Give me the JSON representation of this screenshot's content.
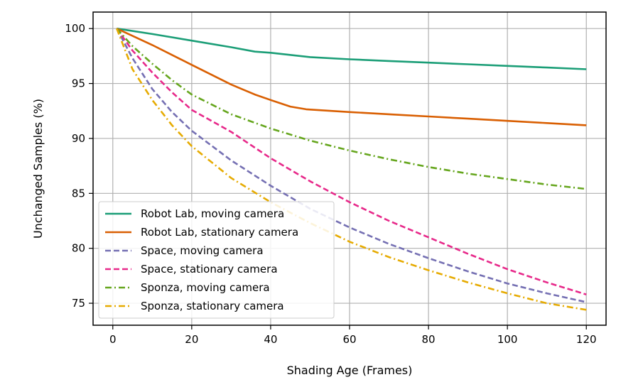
{
  "chart_data": {
    "type": "line",
    "xlabel": "Shading Age (Frames)",
    "ylabel": "Unchanged Samples (%)",
    "xlim": [
      -5,
      125
    ],
    "ylim": [
      73,
      101.5
    ],
    "xticks": [
      0,
      20,
      40,
      60,
      80,
      100,
      120
    ],
    "yticks": [
      75,
      80,
      85,
      90,
      95,
      100
    ],
    "grid": true,
    "legend_position": "lower-left",
    "series": [
      {
        "name": "Robot Lab, moving camera",
        "color": "#1b9e77",
        "dash": "solid",
        "x": [
          1,
          10,
          20,
          30,
          36,
          40,
          50,
          60,
          70,
          80,
          90,
          100,
          110,
          120
        ],
        "y": [
          100,
          99.5,
          98.9,
          98.3,
          97.9,
          97.8,
          97.4,
          97.2,
          97.05,
          96.9,
          96.75,
          96.6,
          96.45,
          96.3
        ]
      },
      {
        "name": "Robot Lab, stationary camera",
        "color": "#d95f02",
        "dash": "solid",
        "x": [
          1,
          10,
          20,
          30,
          36,
          40,
          45,
          49,
          60,
          70,
          80,
          90,
          100,
          110,
          120
        ],
        "y": [
          100,
          98.5,
          96.7,
          94.9,
          94.0,
          93.5,
          92.9,
          92.65,
          92.4,
          92.2,
          92.0,
          91.8,
          91.6,
          91.4,
          91.2
        ]
      },
      {
        "name": "Space, moving camera",
        "color": "#7570b3",
        "dash": "dashed",
        "x": [
          1,
          5,
          10,
          15,
          20,
          30,
          40,
          50,
          60,
          70,
          80,
          90,
          100,
          110,
          120
        ],
        "y": [
          100,
          97.3,
          94.5,
          92.4,
          90.7,
          88.0,
          85.7,
          83.6,
          81.9,
          80.4,
          79.1,
          77.9,
          76.8,
          75.9,
          75.1
        ]
      },
      {
        "name": "Space, stationary camera",
        "color": "#e7298a",
        "dash": "dashed",
        "x": [
          1,
          5,
          10,
          15,
          20,
          30,
          40,
          50,
          60,
          70,
          80,
          90,
          100,
          110,
          120
        ],
        "y": [
          100,
          98.0,
          96.0,
          94.2,
          92.6,
          90.6,
          88.2,
          86.1,
          84.2,
          82.5,
          81.0,
          79.5,
          78.1,
          76.9,
          75.8
        ]
      },
      {
        "name": "Sponza, moving camera",
        "color": "#66a61e",
        "dash": "dashdot",
        "x": [
          1,
          5,
          10,
          15,
          20,
          30,
          40,
          50,
          60,
          70,
          80,
          90,
          100,
          110,
          120
        ],
        "y": [
          100,
          98.4,
          96.8,
          95.3,
          94.0,
          92.2,
          90.9,
          89.8,
          88.9,
          88.1,
          87.4,
          86.8,
          86.3,
          85.8,
          85.4
        ]
      },
      {
        "name": "Sponza, stationary camera",
        "color": "#e6ab02",
        "dash": "dashdot",
        "x": [
          1,
          5,
          10,
          15,
          20,
          30,
          40,
          50,
          60,
          70,
          80,
          90,
          100,
          110,
          120
        ],
        "y": [
          100,
          96.3,
          93.5,
          91.2,
          89.3,
          86.4,
          84.2,
          82.3,
          80.6,
          79.2,
          78.0,
          76.9,
          75.9,
          75.0,
          74.4
        ]
      }
    ]
  }
}
